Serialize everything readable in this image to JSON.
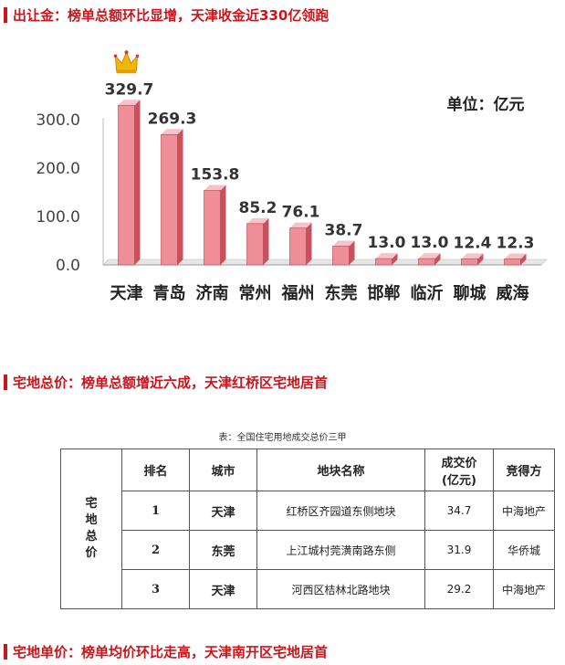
{
  "sections": {
    "s1": "出让金：榜单总额环比显增，天津收金近330亿领跑",
    "s2": "宅地总价：榜单总额增近六成，天津红桥区宅地居首",
    "s3": "宅地单价：榜单均价环比走高，天津南开区宅地居首"
  },
  "chart_data": {
    "type": "bar",
    "title": "",
    "unit_label": "单位：亿元",
    "categories": [
      "天津",
      "青岛",
      "济南",
      "常州",
      "福州",
      "东莞",
      "邯郸",
      "临沂",
      "聊城",
      "威海"
    ],
    "values": [
      329.7,
      269.3,
      153.8,
      85.2,
      76.1,
      38.7,
      13.0,
      13.0,
      12.4,
      12.3
    ],
    "value_labels": [
      "329.7",
      "269.3",
      "153.8",
      "85.2",
      "76.1",
      "38.7",
      "13.0",
      "13.0",
      "12.4",
      "12.3"
    ],
    "yticks": [
      "0.0",
      "100.0",
      "200.0",
      "300.0"
    ],
    "ytick_values": [
      0,
      100,
      200,
      300
    ],
    "ylim": [
      0,
      330
    ],
    "grid": false,
    "bar_color": "#ef8e96",
    "bar_side_color": "#c9515e",
    "crown_on": "天津",
    "crown_icon": "crown-icon"
  },
  "table": {
    "caption": "表：全国住宅用地成交总价三甲",
    "row_header": [
      "宅",
      "地",
      "总",
      "价"
    ],
    "headers": {
      "rank": "排名",
      "city": "城市",
      "parcel": "地块名称",
      "price_line1": "成交价",
      "price_line2": "(亿元)",
      "buyer": "竞得方"
    },
    "rows": [
      {
        "rank": "1",
        "city": "天津",
        "parcel": "红桥区齐园道东侧地块",
        "price": "34.7",
        "buyer": "中海地产"
      },
      {
        "rank": "2",
        "city": "东莞",
        "parcel": "上江城村莞潢南路东侧",
        "price": "31.9",
        "buyer": "华侨城"
      },
      {
        "rank": "3",
        "city": "天津",
        "parcel": "河西区桔林北路地块",
        "price": "29.2",
        "buyer": "中海地产"
      }
    ]
  }
}
